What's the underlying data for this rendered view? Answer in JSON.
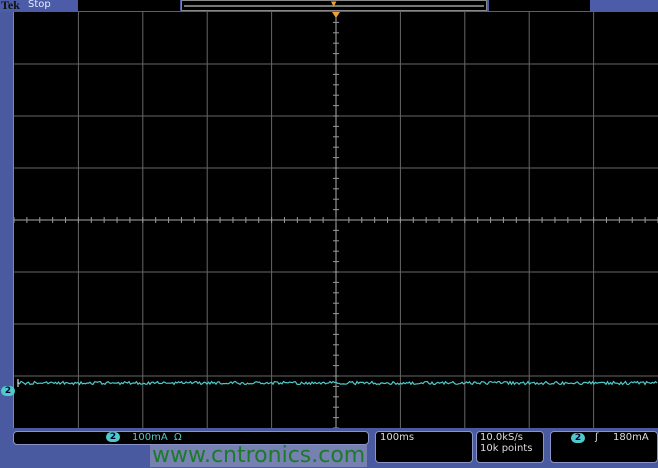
{
  "header": {
    "brand": "Tek",
    "status": "Stop"
  },
  "channel": {
    "number": "2",
    "scale": "100mA",
    "coupling_icon": "Ω",
    "color": "#4fc9c9"
  },
  "timebase": {
    "scale": "100ms"
  },
  "acquisition": {
    "sample_rate": "10.0kS/s",
    "record_length": "10k points"
  },
  "trigger": {
    "source": "2",
    "slope_icon": "rising-edge",
    "level": "180mA"
  },
  "watermark": "www.cntronics.com",
  "colors": {
    "trace": "#4fc9c9",
    "trigger_marker": "#f0a030",
    "frame": "#4a5aa0"
  }
}
